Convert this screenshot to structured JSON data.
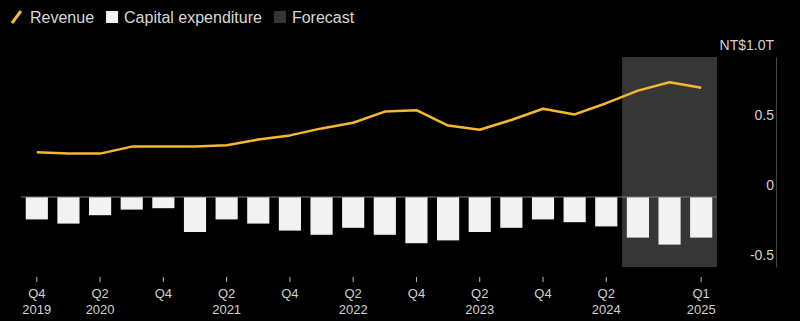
{
  "chart_data": {
    "type": "bar",
    "categories": [
      "Q4\n2019",
      null,
      "Q2\n2020",
      null,
      "Q4",
      null,
      "Q2\n2021",
      null,
      "Q4",
      null,
      "Q2\n2022",
      null,
      "Q4",
      null,
      "Q2\n2023",
      null,
      "Q4",
      null,
      "Q2\n2024",
      null,
      null,
      "Q1\n2025"
    ],
    "series": [
      {
        "name": "Revenue",
        "type": "line",
        "color": "#f5b82e",
        "values": [
          0.32,
          0.31,
          0.31,
          0.36,
          0.36,
          0.36,
          0.37,
          0.41,
          0.44,
          0.49,
          0.53,
          0.61,
          0.62,
          0.51,
          0.48,
          0.55,
          0.63,
          0.59,
          0.67,
          0.76,
          0.82,
          0.78
        ]
      },
      {
        "name": "Capital expenditure",
        "type": "bar",
        "color": "#f2f2f2",
        "values": [
          -0.16,
          -0.19,
          -0.13,
          -0.09,
          -0.08,
          -0.25,
          -0.16,
          -0.19,
          -0.24,
          -0.27,
          -0.22,
          -0.27,
          -0.33,
          -0.31,
          -0.25,
          -0.22,
          -0.16,
          -0.18,
          -0.21,
          -0.29,
          -0.34,
          -0.29
        ]
      }
    ],
    "forecast": {
      "name": "Forecast",
      "color": "#363636",
      "start_index": 19,
      "end_index": 21
    },
    "ylim": [
      -0.5,
      1.0
    ],
    "yticks": [
      -0.5,
      0,
      0.5,
      {
        "value": 1.0,
        "label": "NT$1.0T"
      }
    ],
    "grid": false,
    "legend": "top-left"
  }
}
